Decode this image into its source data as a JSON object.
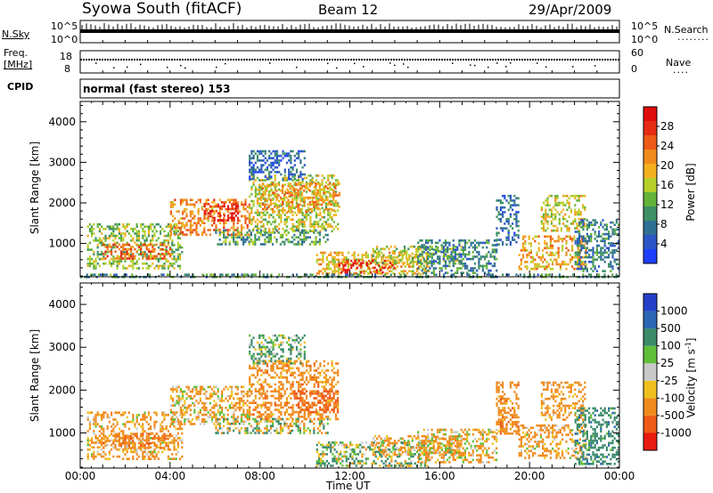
{
  "header": {
    "station": "Syowa South (fitACF)",
    "beam": "Beam 12",
    "date": "29/Apr/2009"
  },
  "top_panels": {
    "nsky_label": "N.Sky",
    "nsearch_label": "N.Search",
    "freq_label_1": "Freq.",
    "freq_label_2": "[MHz]",
    "nave_label": "Nave",
    "cpid_label": "CPID",
    "cpid_value": "normal (fast stereo) 153",
    "noise_left_ticks": [
      "10^5",
      "10^0"
    ],
    "noise_right_ticks": [
      "10^5",
      "10^0"
    ],
    "freq_left_ticks": [
      "18",
      "8"
    ],
    "freq_right_ticks": [
      "60",
      "0"
    ]
  },
  "chart_data": [
    {
      "type": "heatmap",
      "panel": "power",
      "ylabel": "Slant Range [km]",
      "ylim": [
        180,
        4500
      ],
      "yticks": [
        "1000",
        "2000",
        "3000",
        "4000"
      ],
      "xlim": [
        0,
        24
      ],
      "colorbar": {
        "label": "Power [dB]",
        "range": [
          0,
          32
        ],
        "ticks": [
          "4",
          "8",
          "12",
          "16",
          "20",
          "24",
          "28"
        ],
        "colors": [
          "#1f3fff",
          "#2c56c8",
          "#2f6f94",
          "#3d8f64",
          "#63b23a",
          "#b6cf2a",
          "#f2b01f",
          "#f08a1c",
          "#ee5a17",
          "#e62c14",
          "#e00d0d"
        ]
      },
      "regions": [
        {
          "t": [
            0.3,
            4.5
          ],
          "r": [
            400,
            1500
          ],
          "value": 14
        },
        {
          "t": [
            1.0,
            4.0
          ],
          "r": [
            650,
            1000
          ],
          "value": 24
        },
        {
          "t": [
            4.0,
            7.5
          ],
          "r": [
            1200,
            2100
          ],
          "value": 22
        },
        {
          "t": [
            5.5,
            7.0
          ],
          "r": [
            1600,
            2000
          ],
          "value": 29
        },
        {
          "t": [
            7.5,
            11.5
          ],
          "r": [
            1300,
            2700
          ],
          "value": 16
        },
        {
          "t": [
            8.0,
            11.5
          ],
          "r": [
            1800,
            2500
          ],
          "value": 21
        },
        {
          "t": [
            7.5,
            10.0
          ],
          "r": [
            2600,
            3300
          ],
          "value": 6
        },
        {
          "t": [
            6.0,
            11.0
          ],
          "r": [
            1000,
            1350
          ],
          "value": 11
        },
        {
          "t": [
            10.5,
            15.5
          ],
          "r": [
            250,
            800
          ],
          "value": 19
        },
        {
          "t": [
            11.5,
            14.0
          ],
          "r": [
            300,
            600
          ],
          "value": 28
        },
        {
          "t": [
            13.0,
            17.0
          ],
          "r": [
            500,
            950
          ],
          "value": 15
        },
        {
          "t": [
            15.0,
            18.5
          ],
          "r": [
            300,
            1100
          ],
          "value": 9
        },
        {
          "t": [
            18.5,
            19.5
          ],
          "r": [
            1000,
            2200
          ],
          "value": 7
        },
        {
          "t": [
            19.5,
            22.5
          ],
          "r": [
            400,
            1200
          ],
          "value": 20
        },
        {
          "t": [
            20.5,
            22.5
          ],
          "r": [
            1300,
            2200
          ],
          "value": 17
        },
        {
          "t": [
            22.0,
            24.0
          ],
          "r": [
            300,
            1600
          ],
          "value": 8
        },
        {
          "t": [
            0.0,
            24.0
          ],
          "r": [
            180,
            260
          ],
          "value": 10
        }
      ]
    },
    {
      "type": "heatmap",
      "panel": "velocity",
      "ylabel": "Slant Range [km]",
      "xlabel": "Time UT",
      "ylim": [
        180,
        4500
      ],
      "yticks": [
        "1000",
        "2000",
        "3000",
        "4000"
      ],
      "xlim": [
        0,
        24
      ],
      "xticks": [
        "00:00",
        "04:00",
        "08:00",
        "12:00",
        "16:00",
        "20:00",
        "00:00"
      ],
      "colorbar": {
        "label": "Velocity [m s-1]",
        "ticks": [
          "1000",
          "500",
          "100",
          "25",
          "-25",
          "-100",
          "-500",
          "-1000"
        ],
        "colors": [
          "#2540c8",
          "#2a66b4",
          "#3a8a6a",
          "#5fbf3a",
          "#c8c8c8",
          "#f0c020",
          "#f08a1c",
          "#ee5a17",
          "#e81c10"
        ]
      },
      "regions": [
        {
          "t": [
            0.3,
            4.5
          ],
          "r": [
            400,
            1500
          ],
          "value": -200
        },
        {
          "t": [
            1.0,
            4.0
          ],
          "r": [
            650,
            1000
          ],
          "value": -400
        },
        {
          "t": [
            4.0,
            7.5
          ],
          "r": [
            1200,
            2100
          ],
          "value": -150
        },
        {
          "t": [
            7.5,
            11.5
          ],
          "r": [
            1300,
            2700
          ],
          "value": -300
        },
        {
          "t": [
            9.5,
            11.5
          ],
          "r": [
            1500,
            2000
          ],
          "value": -700
        },
        {
          "t": [
            7.5,
            10.0
          ],
          "r": [
            2600,
            3300
          ],
          "value": 150
        },
        {
          "t": [
            6.0,
            11.0
          ],
          "r": [
            1000,
            1350
          ],
          "value": 0
        },
        {
          "t": [
            10.5,
            15.5
          ],
          "r": [
            250,
            800
          ],
          "value": 80
        },
        {
          "t": [
            13.0,
            17.0
          ],
          "r": [
            500,
            950
          ],
          "value": -120
        },
        {
          "t": [
            15.0,
            18.5
          ],
          "r": [
            300,
            1100
          ],
          "value": -150
        },
        {
          "t": [
            18.5,
            19.5
          ],
          "r": [
            1000,
            2200
          ],
          "value": -300
        },
        {
          "t": [
            19.5,
            22.5
          ],
          "r": [
            400,
            1200
          ],
          "value": -200
        },
        {
          "t": [
            20.5,
            22.5
          ],
          "r": [
            1300,
            2200
          ],
          "value": -250
        },
        {
          "t": [
            22.0,
            24.0
          ],
          "r": [
            300,
            1600
          ],
          "value": 300
        }
      ]
    }
  ]
}
